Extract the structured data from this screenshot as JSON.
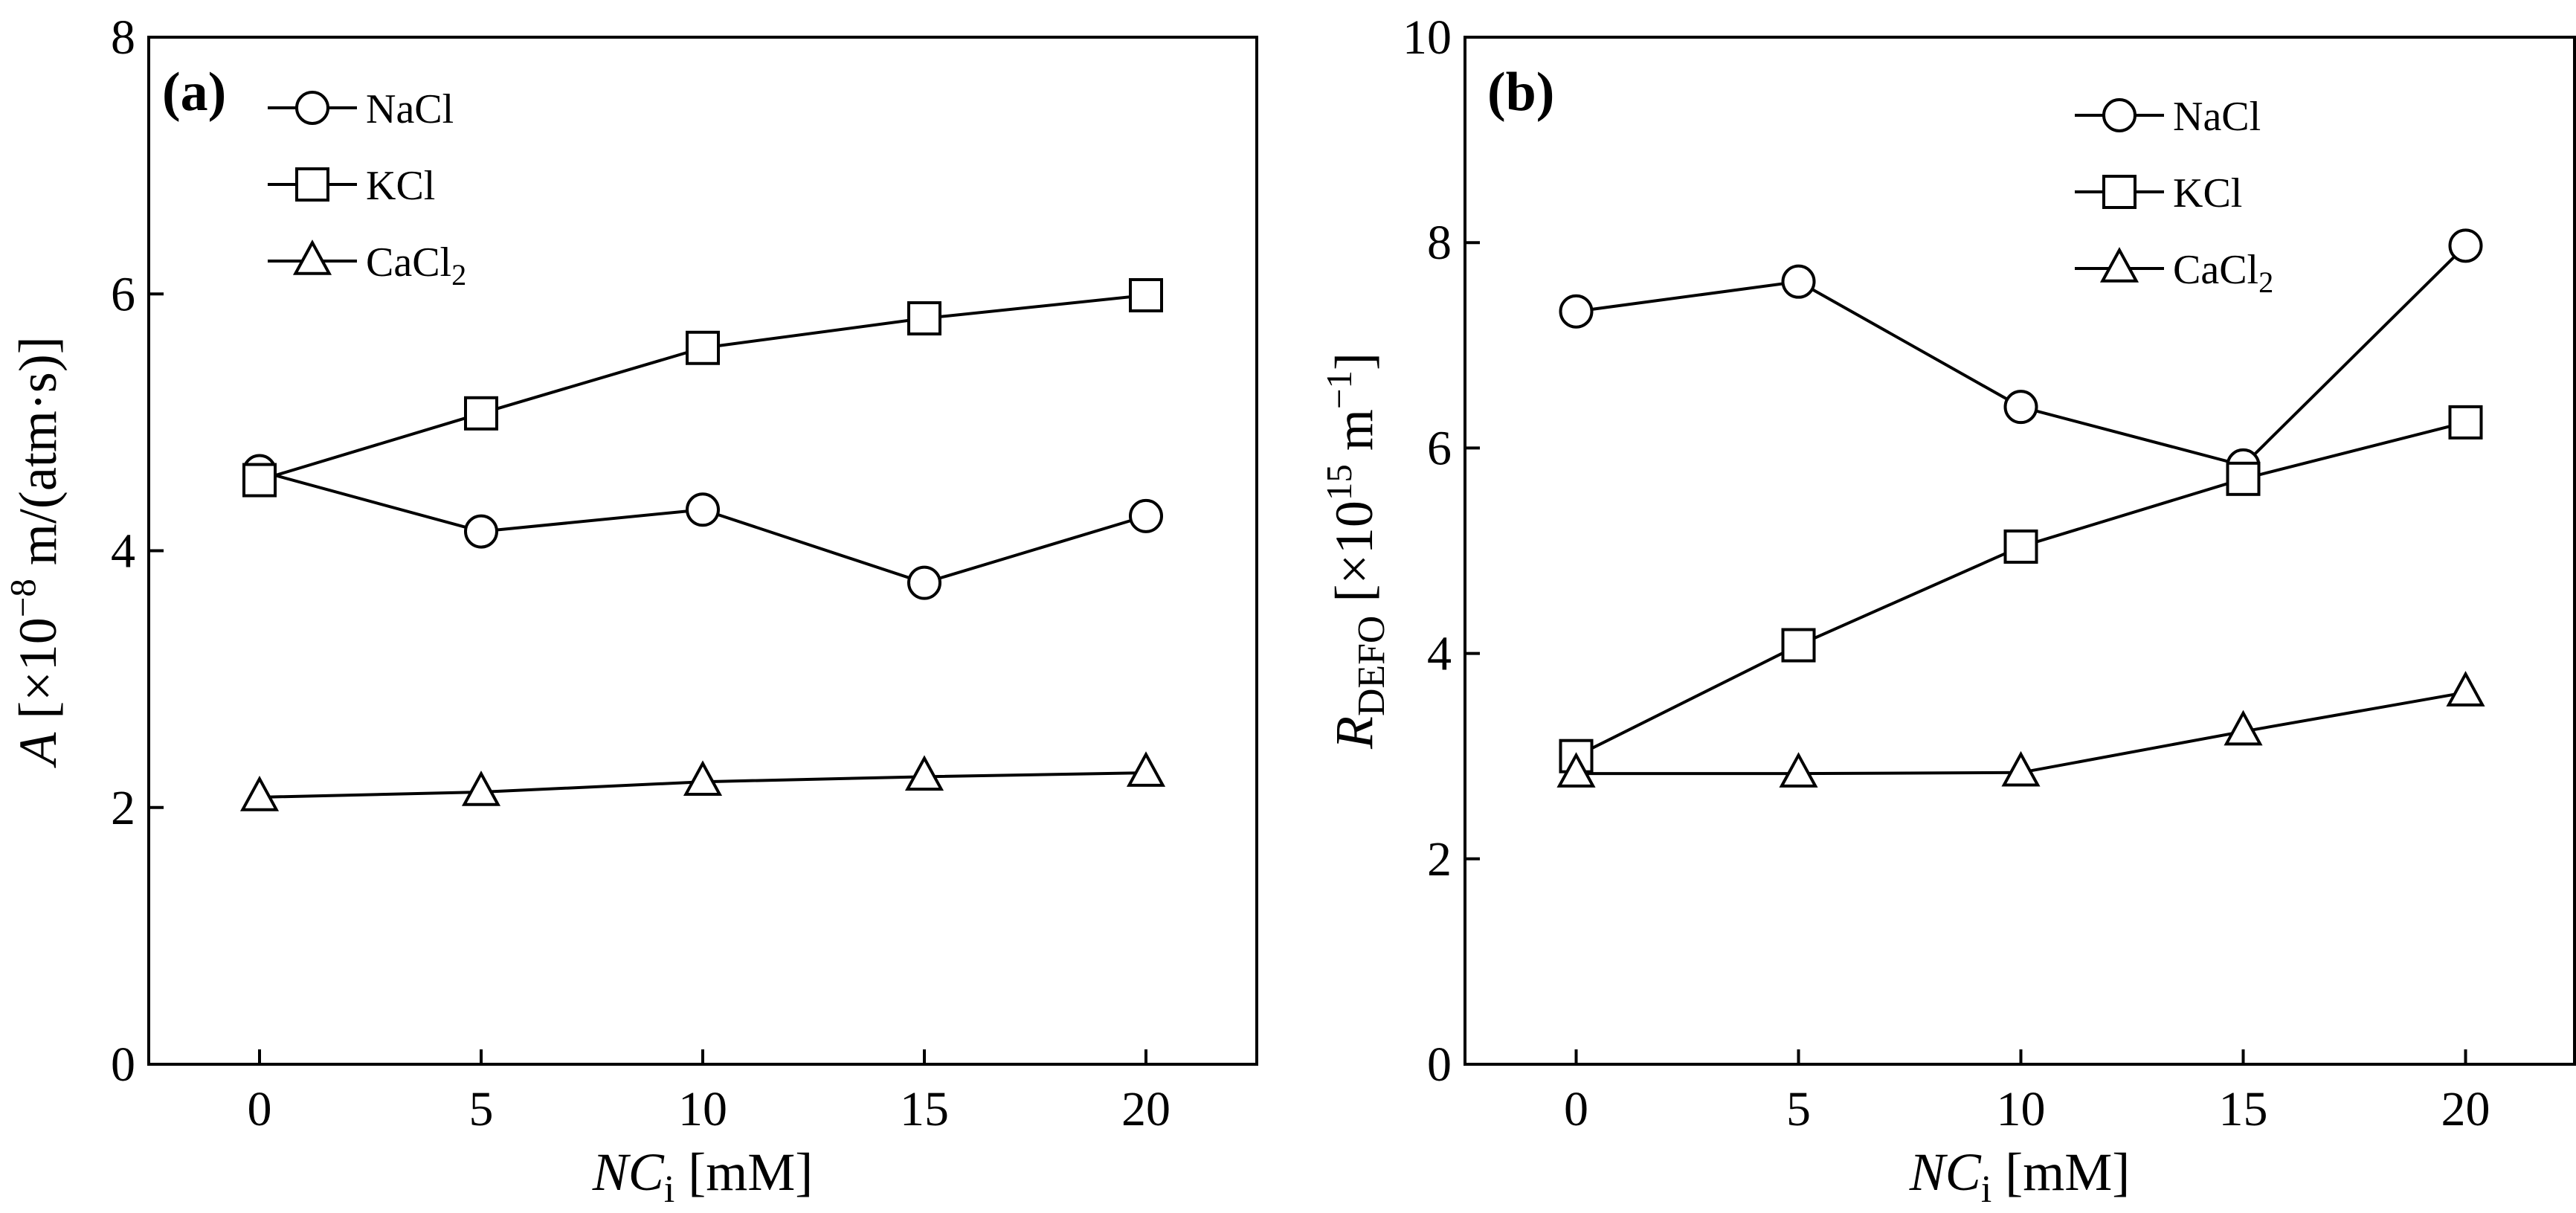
{
  "chart_data": [
    {
      "type": "line",
      "panel_label": "(a)",
      "xlabel": {
        "var": "NC",
        "sub": "i",
        "unit": " [mM]"
      },
      "ylabel": {
        "var": "A",
        "pre": " [×10",
        "exp": "−8",
        "post": " m/(atm·s)]"
      },
      "xlim": [
        -2.5,
        22.5
      ],
      "ylim": [
        0,
        8
      ],
      "xticks": [
        0,
        5,
        10,
        15,
        20
      ],
      "yticks": [
        0,
        2,
        4,
        6,
        8
      ],
      "legend_position": "top-left",
      "series": [
        {
          "name": "NaCl",
          "marker": "circle",
          "x": [
            0,
            5,
            10,
            15,
            20
          ],
          "values": [
            4.62,
            4.15,
            4.32,
            3.75,
            4.27
          ]
        },
        {
          "name": "KCl",
          "marker": "square",
          "x": [
            0,
            5,
            10,
            15,
            20
          ],
          "values": [
            4.55,
            5.07,
            5.58,
            5.81,
            5.99
          ]
        },
        {
          "name": "CaCl",
          "name_sub": "2",
          "marker": "triangle",
          "x": [
            0,
            5,
            10,
            15,
            20
          ],
          "values": [
            2.08,
            2.12,
            2.2,
            2.24,
            2.27
          ]
        }
      ]
    },
    {
      "type": "line",
      "panel_label": "(b)",
      "xlabel": {
        "var": "NC",
        "sub": "i",
        "unit": " [mM]"
      },
      "ylabel": {
        "var": "R",
        "sub": "DEFO",
        "pre": " [×10",
        "exp": "15",
        "post": " m",
        "exp2": "−1",
        "post2": "]"
      },
      "xlim": [
        -2.5,
        22.5
      ],
      "ylim": [
        0,
        10
      ],
      "xticks": [
        0,
        5,
        10,
        15,
        20
      ],
      "yticks": [
        0,
        2,
        4,
        6,
        8,
        10
      ],
      "legend_position": "top-right",
      "series": [
        {
          "name": "NaCl",
          "marker": "circle",
          "x": [
            0,
            5,
            10,
            15,
            20
          ],
          "values": [
            7.33,
            7.62,
            6.4,
            5.83,
            7.97
          ]
        },
        {
          "name": "KCl",
          "marker": "square",
          "x": [
            0,
            5,
            10,
            15,
            20
          ],
          "values": [
            3.0,
            4.08,
            5.04,
            5.7,
            6.25
          ]
        },
        {
          "name": "CaCl",
          "name_sub": "2",
          "marker": "triangle",
          "x": [
            0,
            5,
            10,
            15,
            20
          ],
          "values": [
            2.83,
            2.83,
            2.84,
            3.24,
            3.62
          ]
        }
      ]
    }
  ]
}
